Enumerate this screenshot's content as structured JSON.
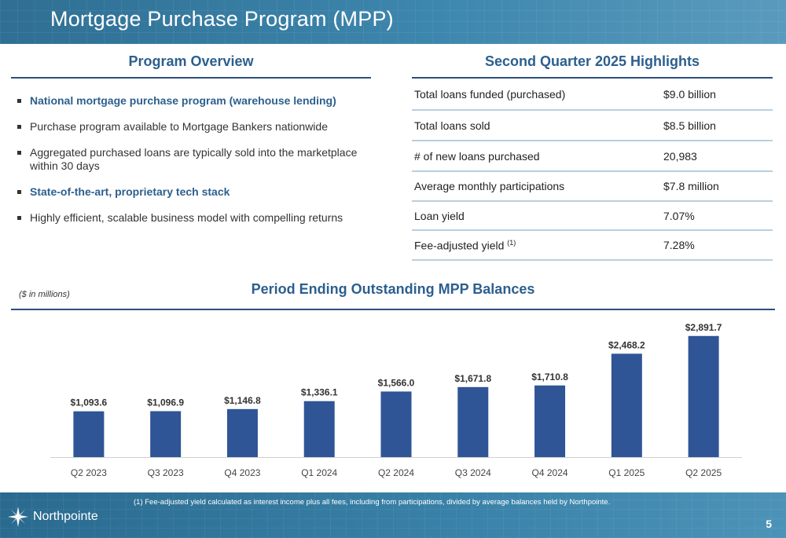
{
  "slide": {
    "title": "Mortgage Purchase Program (MPP)",
    "page_number": "5"
  },
  "overview": {
    "title": "Program Overview",
    "bullets": [
      {
        "text": "National mortgage purchase program (warehouse lending)",
        "bold": true
      },
      {
        "text": "Purchase program available to Mortgage Bankers nationwide",
        "bold": false
      },
      {
        "text": "Aggregated purchased loans are typically sold into the marketplace within 30 days",
        "bold": false
      },
      {
        "text": "State-of-the-art, proprietary tech stack",
        "bold": true
      },
      {
        "text": "Highly efficient, scalable business model with compelling returns",
        "bold": false
      }
    ]
  },
  "highlights": {
    "title": "Second Quarter 2025 Highlights",
    "rows": [
      {
        "label": "Total loans funded (purchased)",
        "value": "$9.0 billion"
      },
      {
        "label": "Total loans sold",
        "value": "$8.5 billion"
      },
      {
        "label": "# of new loans purchased",
        "value": "20,983"
      },
      {
        "label": "Average monthly participations",
        "value": "$7.8 million"
      },
      {
        "label": "Loan yield",
        "value": "7.07%"
      },
      {
        "label": "Fee-adjusted yield",
        "value": "7.28%",
        "footnote": "(1)"
      }
    ]
  },
  "units_note": "($ in millions)",
  "chart_data": {
    "type": "bar",
    "title": "Period Ending Outstanding MPP Balances",
    "categories": [
      "Q2 2023",
      "Q3 2023",
      "Q4 2023",
      "Q1 2024",
      "Q2 2024",
      "Q3 2024",
      "Q4 2024",
      "Q1 2025",
      "Q2 2025"
    ],
    "values": [
      1093.6,
      1096.9,
      1146.8,
      1336.1,
      1566.0,
      1671.8,
      1710.8,
      2468.2,
      2891.7
    ],
    "data_labels": [
      "$1,093.6",
      "$1,096.9",
      "$1,146.8",
      "$1,336.1",
      "$1,566.0",
      "$1,671.8",
      "$1,710.8",
      "$2,468.2",
      "$2,891.7"
    ],
    "ylim": [
      0,
      3000
    ],
    "grid": false,
    "color": "#2f5597"
  },
  "footer": {
    "footnote": "(1)    Fee-adjusted yield calculated as interest income plus all fees, including from participations, divided by average balances held by Northpointe.",
    "logo_text": "Northpointe"
  }
}
